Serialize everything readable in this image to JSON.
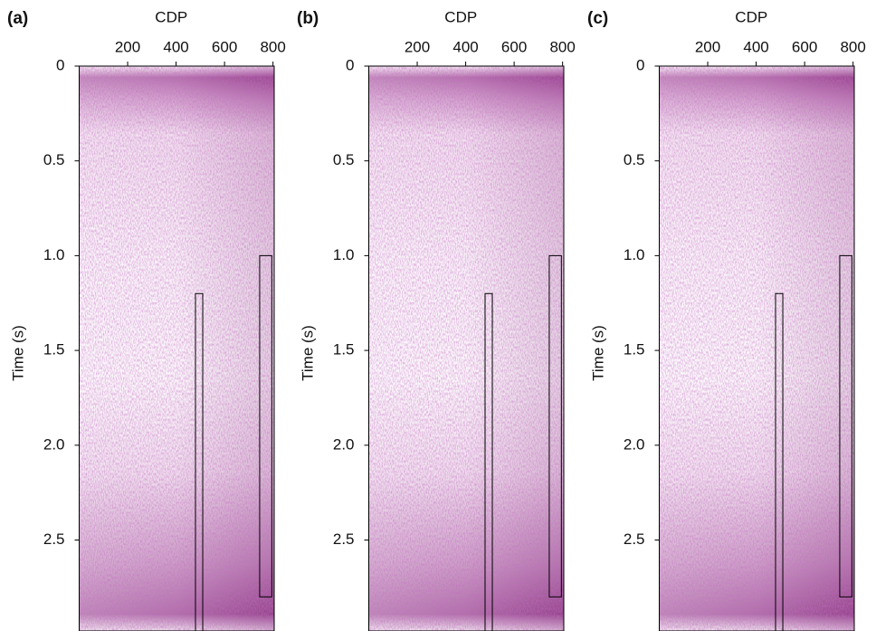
{
  "chart_data": [
    {
      "type": "heatmap",
      "panel_label": "(a)",
      "xlabel": "CDP",
      "ylabel": "Time (s)",
      "xlim": [
        0,
        805
      ],
      "xticks": [
        200,
        400,
        600,
        800
      ],
      "ylim": [
        0,
        2.98
      ],
      "yticks": [
        0,
        0.5,
        {
          "value": 1,
          "label": "1.0"
        },
        1.5,
        {
          "value": 2,
          "label": "2.0"
        },
        2.5
      ],
      "boxes": [
        {
          "x": [
            480,
            510
          ],
          "y": [
            1.2,
            2.98
          ]
        },
        {
          "x": [
            745,
            795
          ],
          "y": [
            1.0,
            2.8
          ]
        }
      ],
      "box_color": "#000000"
    },
    {
      "type": "heatmap",
      "panel_label": "(b)",
      "xlabel": "CDP",
      "ylabel": "Time (s)",
      "xlim": [
        0,
        805
      ],
      "xticks": [
        200,
        400,
        600,
        800
      ],
      "ylim": [
        0,
        2.98
      ],
      "yticks": [
        0,
        0.5,
        {
          "value": 1,
          "label": "1.0"
        },
        1.5,
        {
          "value": 2,
          "label": "2.0"
        },
        2.5
      ],
      "boxes": [
        {
          "x": [
            480,
            510
          ],
          "y": [
            1.2,
            2.98
          ]
        },
        {
          "x": [
            745,
            795
          ],
          "y": [
            1.0,
            2.8
          ]
        }
      ],
      "box_color": "#000000"
    },
    {
      "type": "heatmap",
      "panel_label": "(c)",
      "xlabel": "CDP",
      "ylabel": "Time (s)",
      "xlim": [
        0,
        805
      ],
      "xticks": [
        200,
        400,
        600,
        800
      ],
      "ylim": [
        0,
        2.98
      ],
      "yticks": [
        0,
        0.5,
        {
          "value": 1,
          "label": "1.0"
        },
        1.5,
        {
          "value": 2,
          "label": "2.0"
        },
        2.5
      ],
      "boxes": [
        {
          "x": [
            480,
            510
          ],
          "y": [
            1.2,
            2.98
          ]
        },
        {
          "x": [
            745,
            795
          ],
          "y": [
            1.0,
            2.8
          ]
        }
      ],
      "box_color": "#000000"
    }
  ]
}
